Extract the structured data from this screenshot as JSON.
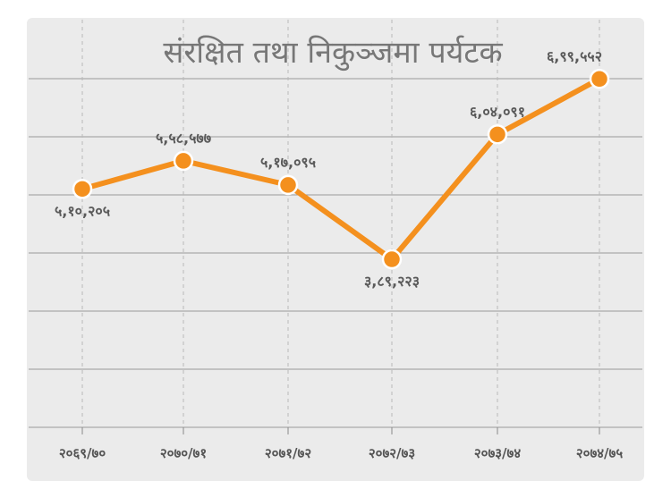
{
  "chart_data": {
    "type": "line",
    "title": "संरक्षित तथा निकुञ्जमा पर्यटक",
    "categories": [
      "२०६९/७०",
      "२०७०/७१",
      "२०७१/७२",
      "२०७२/७३",
      "२०७३/७४",
      "२०७४/७५"
    ],
    "values": [
      510205,
      558577,
      517095,
      389223,
      604091,
      699552
    ],
    "value_labels": [
      "५,१०,२०५",
      "५,५८,५७७",
      "५,१७,०९५",
      "३,८९,२२३",
      "६,०४,०९१",
      "६,९९,५५२"
    ],
    "ylim": [
      100000,
      700000
    ],
    "grid": true,
    "colors": {
      "line": "#f4901e",
      "marker_stroke": "#ffffff",
      "background": "#ebebeb"
    }
  }
}
